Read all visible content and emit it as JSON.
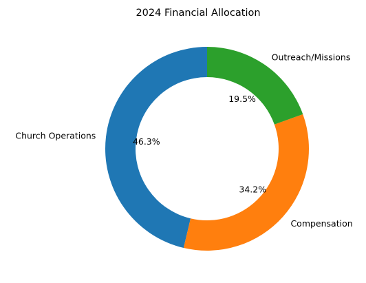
{
  "chart_data": {
    "type": "pie",
    "title": "2024 Financial Allocation",
    "donut": true,
    "start_angle_deg": 90,
    "direction": "counterclockwise",
    "slices": [
      {
        "label": "Church Operations",
        "value": 46.3,
        "pct_label": "46.3%",
        "color": "#1f77b4"
      },
      {
        "label": "Compensation",
        "value": 34.2,
        "pct_label": "34.2%",
        "color": "#ff7f0e"
      },
      {
        "label": "Outreach/Missions",
        "value": 19.5,
        "pct_label": "19.5%",
        "color": "#2ca02c"
      }
    ]
  }
}
